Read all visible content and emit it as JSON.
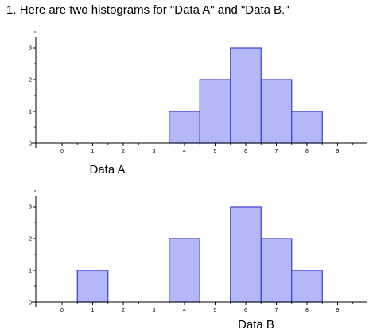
{
  "question": {
    "number": "1.",
    "text": "Here are two histograms for \"Data A\" and \"Data B.\""
  },
  "colors": {
    "bar_fill": "#b3b9f7",
    "bar_stroke": "#3b3fd6",
    "axis": "#000000"
  },
  "chart_data": [
    {
      "type": "bar",
      "title": "Data A",
      "xlabel": "Data A",
      "ylabel": "",
      "x_ticks": [
        "0",
        "1",
        "2",
        "3",
        "4",
        "5",
        "6",
        "7",
        "8",
        "9"
      ],
      "y_ticks": [
        "0",
        "1",
        "2",
        "3"
      ],
      "xlim": [
        -1,
        10
      ],
      "ylim": [
        0,
        3.3
      ],
      "categories": [
        4,
        5,
        6,
        7,
        8
      ],
      "values": [
        1,
        2,
        3,
        2,
        1
      ],
      "grid": false
    },
    {
      "type": "bar",
      "title": "Data B",
      "xlabel": "Data B",
      "ylabel": "",
      "x_ticks": [
        "0",
        "1",
        "2",
        "3",
        "4",
        "5",
        "6",
        "7",
        "8",
        "9"
      ],
      "y_ticks": [
        "0",
        "1",
        "2",
        "3"
      ],
      "xlim": [
        -1,
        10
      ],
      "ylim": [
        0,
        3.3
      ],
      "categories": [
        1,
        4,
        6,
        7,
        8
      ],
      "values": [
        1,
        2,
        3,
        2,
        1
      ],
      "grid": false
    }
  ]
}
